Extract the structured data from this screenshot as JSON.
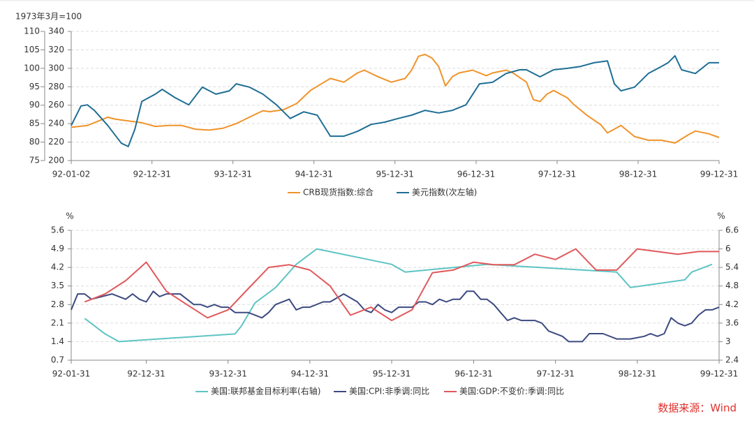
{
  "chart_data": [
    {
      "type": "line",
      "unit": "1973年3月=100",
      "xlim": [
        "92-01-02",
        "99-12-31"
      ],
      "xticks": [
        "92-01-02",
        "92-12-31",
        "93-12-31",
        "94-12-31",
        "95-12-31",
        "96-12-31",
        "97-12-31",
        "98-12-31",
        "99-12-31"
      ],
      "ylim": [
        200,
        340
      ],
      "yticks": [
        200,
        220,
        240,
        260,
        280,
        300,
        320,
        340
      ],
      "y2lim": [
        75,
        110
      ],
      "y2ticks": [
        75,
        80,
        85,
        90,
        95,
        100,
        105,
        110
      ],
      "y2_position": "left",
      "grid": true,
      "series": [
        {
          "name": "CRB现货指数:综合",
          "color": "#f0932a",
          "x": [
            "92-01-02",
            "92-03-15",
            "92-05-15",
            "92-06-15",
            "92-07-15",
            "92-09-15",
            "92-11-15",
            "93-01-15",
            "93-03-15",
            "93-05-15",
            "93-07-15",
            "93-09-15",
            "93-11-15",
            "94-01-15",
            "94-03-15",
            "94-05-15",
            "94-06-15",
            "94-08-15",
            "94-10-15",
            "94-12-15",
            "95-02-15",
            "95-03-15",
            "95-05-15",
            "95-07-15",
            "95-08-15",
            "95-10-15",
            "95-12-15",
            "96-02-15",
            "96-03-15",
            "96-04-15",
            "96-05-15",
            "96-06-15",
            "96-07-15",
            "96-08-15",
            "96-09-15",
            "96-10-15",
            "96-12-15",
            "97-02-15",
            "97-03-15",
            "97-05-15",
            "97-06-15",
            "97-08-15",
            "97-09-15",
            "97-10-15",
            "97-11-15",
            "97-12-15",
            "98-02-15",
            "98-03-15",
            "98-05-15",
            "98-07-15",
            "98-08-15",
            "98-10-15",
            "98-12-15",
            "99-02-15",
            "99-04-15",
            "99-06-15",
            "99-08-15",
            "99-09-15",
            "99-11-15",
            "99-12-31"
          ],
          "values": [
            236,
            238,
            244,
            247,
            245,
            243,
            241,
            237,
            238,
            238,
            234,
            233,
            235,
            240,
            247,
            254,
            253,
            255,
            262,
            276,
            285,
            289,
            285,
            295,
            298,
            291,
            285,
            289,
            298,
            313,
            315,
            311,
            302,
            281,
            291,
            295,
            298,
            292,
            295,
            298,
            295,
            285,
            266,
            264,
            272,
            276,
            268,
            261,
            249,
            239,
            230,
            238,
            226,
            222,
            222,
            219,
            228,
            232,
            229,
            225
          ]
        },
        {
          "name": "美元指数(次左轴)",
          "color": "#1f6e94",
          "axis": "y2",
          "x": [
            "92-01-02",
            "92-02-15",
            "92-03-15",
            "92-04-15",
            "92-06-15",
            "92-08-15",
            "92-09-15",
            "92-10-15",
            "92-11-15",
            "93-01-15",
            "93-02-15",
            "93-04-15",
            "93-06-15",
            "93-08-15",
            "93-10-15",
            "93-12-15",
            "94-01-15",
            "94-03-15",
            "94-05-15",
            "94-07-15",
            "94-09-15",
            "94-11-15",
            "95-01-15",
            "95-03-15",
            "95-05-15",
            "95-07-15",
            "95-09-15",
            "95-11-15",
            "96-01-15",
            "96-03-15",
            "96-05-15",
            "96-07-15",
            "96-09-15",
            "96-11-15",
            "97-01-15",
            "97-03-15",
            "97-05-15",
            "97-07-15",
            "97-08-15",
            "97-10-15",
            "97-12-15",
            "98-02-15",
            "98-04-15",
            "98-06-15",
            "98-08-15",
            "98-09-15",
            "98-10-15",
            "98-12-15",
            "99-02-15",
            "99-04-15",
            "99-05-15",
            "99-06-15",
            "99-07-15",
            "99-09-15",
            "99-11-15",
            "99-12-31"
          ],
          "values": [
            84.5,
            89.8,
            90.1,
            88.6,
            84.5,
            79.7,
            78.8,
            83.5,
            91,
            93,
            94.3,
            92,
            90.1,
            94.9,
            93,
            93.9,
            95.8,
            94.9,
            93,
            90.1,
            86.4,
            88.2,
            87.3,
            81.6,
            81.6,
            82.9,
            84.8,
            85.4,
            86.4,
            87.3,
            88.6,
            87.9,
            88.6,
            90.1,
            95.8,
            96.2,
            98.6,
            99.6,
            99.6,
            97.7,
            99.6,
            100,
            100.5,
            101.5,
            102,
            95.8,
            93.9,
            94.9,
            98.6,
            100.5,
            101.5,
            103.4,
            99.6,
            98.6,
            101.5,
            101.5
          ]
        }
      ]
    },
    {
      "type": "line",
      "y_unit": "%",
      "y2_unit": "%",
      "xlim": [
        "92-01-31",
        "99-12-31"
      ],
      "xticks": [
        "92-01-31",
        "92-12-31",
        "93-12-31",
        "94-12-31",
        "95-12-31",
        "96-12-31",
        "97-12-31",
        "98-12-31",
        "99-12-31"
      ],
      "ylim": [
        0.7,
        5.6
      ],
      "yticks": [
        0.7,
        1.4,
        2.1,
        2.8,
        3.5,
        4.2,
        4.9,
        5.6
      ],
      "y2lim": [
        2.4,
        6.6
      ],
      "y2ticks": [
        2.4,
        3,
        3.6,
        4.2,
        4.8,
        5.4,
        6,
        6.6
      ],
      "y2_position": "right",
      "grid": true,
      "series": [
        {
          "name": "美国:联邦基金目标利率(右轴)",
          "color": "#5ec4c3",
          "axis": "y2",
          "x": [
            "92-03-31",
            "92-06-30",
            "92-08-31",
            "94-01-31",
            "94-02-28",
            "94-04-30",
            "94-07-31",
            "94-10-31",
            "95-01-31",
            "95-12-31",
            "96-02-29",
            "97-02-28",
            "98-09-30",
            "98-10-31",
            "98-11-30",
            "99-07-31",
            "99-08-31",
            "99-11-30"
          ],
          "values": [
            3.75,
            3.25,
            3.0,
            3.25,
            3.5,
            4.25,
            4.75,
            5.5,
            6.0,
            5.5,
            5.25,
            5.5,
            5.25,
            5.0,
            4.75,
            5.0,
            5.25,
            5.5
          ]
        },
        {
          "name": "美国:CPI:非季调:同比",
          "color": "#3c4a80",
          "x": [
            "92-01-31",
            "92-02-29",
            "92-03-31",
            "92-04-30",
            "92-07-31",
            "92-09-30",
            "92-10-31",
            "92-11-30",
            "92-12-31",
            "93-01-31",
            "93-02-28",
            "93-03-31",
            "93-05-31",
            "93-07-31",
            "93-08-31",
            "93-09-30",
            "93-10-31",
            "93-11-30",
            "93-12-31",
            "94-01-31",
            "94-03-31",
            "94-05-31",
            "94-06-30",
            "94-07-31",
            "94-09-30",
            "94-10-31",
            "94-11-30",
            "94-12-31",
            "95-02-28",
            "95-03-31",
            "95-05-31",
            "95-07-31",
            "95-08-31",
            "95-09-30",
            "95-10-31",
            "95-11-30",
            "95-12-31",
            "96-01-31",
            "96-03-31",
            "96-04-30",
            "96-05-31",
            "96-06-30",
            "96-07-31",
            "96-08-31",
            "96-09-30",
            "96-10-31",
            "96-11-30",
            "96-12-31",
            "97-01-31",
            "97-02-28",
            "97-03-31",
            "97-04-30",
            "97-05-31",
            "97-06-30",
            "97-07-31",
            "97-09-30",
            "97-10-31",
            "97-11-30",
            "98-01-31",
            "98-02-28",
            "98-04-30",
            "98-05-31",
            "98-07-31",
            "98-09-30",
            "98-11-30",
            "99-01-31",
            "99-02-28",
            "99-03-31",
            "99-04-30",
            "99-05-31",
            "99-06-30",
            "99-07-31",
            "99-08-31",
            "99-09-30",
            "99-10-31",
            "99-11-30",
            "99-12-31"
          ],
          "values": [
            2.6,
            3.2,
            3.2,
            3.0,
            3.2,
            3.0,
            3.2,
            3.0,
            2.9,
            3.3,
            3.1,
            3.2,
            3.2,
            2.8,
            2.8,
            2.7,
            2.8,
            2.7,
            2.7,
            2.5,
            2.5,
            2.3,
            2.5,
            2.8,
            3.0,
            2.6,
            2.7,
            2.7,
            2.9,
            2.9,
            3.2,
            2.9,
            2.6,
            2.5,
            2.8,
            2.6,
            2.5,
            2.7,
            2.7,
            2.9,
            2.9,
            2.8,
            3.0,
            2.9,
            3.0,
            3.0,
            3.3,
            3.3,
            3.0,
            3.0,
            2.8,
            2.5,
            2.2,
            2.3,
            2.2,
            2.2,
            2.1,
            1.8,
            1.6,
            1.4,
            1.4,
            1.7,
            1.7,
            1.5,
            1.5,
            1.6,
            1.7,
            1.6,
            1.7,
            2.3,
            2.1,
            2.0,
            2.1,
            2.4,
            2.6,
            2.6,
            2.7
          ]
        },
        {
          "name": "美国:GDP:不变价:季调:同比",
          "color": "#e0595c",
          "x": [
            "92-03-31",
            "92-06-30",
            "92-09-30",
            "92-12-31",
            "93-03-31",
            "93-06-30",
            "93-09-30",
            "93-12-31",
            "94-03-31",
            "94-06-30",
            "94-09-30",
            "94-12-31",
            "95-03-31",
            "95-06-30",
            "95-09-30",
            "95-12-31",
            "96-03-31",
            "96-06-30",
            "96-09-30",
            "96-12-31",
            "97-03-31",
            "97-06-30",
            "97-09-30",
            "97-12-31",
            "98-03-31",
            "98-06-30",
            "98-09-30",
            "98-12-31",
            "99-03-31",
            "99-06-30",
            "99-09-30",
            "99-12-31"
          ],
          "values": [
            2.9,
            3.2,
            3.7,
            4.4,
            3.3,
            2.8,
            2.3,
            2.6,
            3.4,
            4.2,
            4.3,
            4.1,
            3.5,
            2.4,
            2.7,
            2.2,
            2.6,
            4.0,
            4.1,
            4.4,
            4.3,
            4.3,
            4.7,
            4.5,
            4.9,
            4.1,
            4.1,
            4.9,
            4.8,
            4.7,
            4.8,
            4.8
          ]
        }
      ]
    }
  ],
  "source": "数据来源：Wind"
}
